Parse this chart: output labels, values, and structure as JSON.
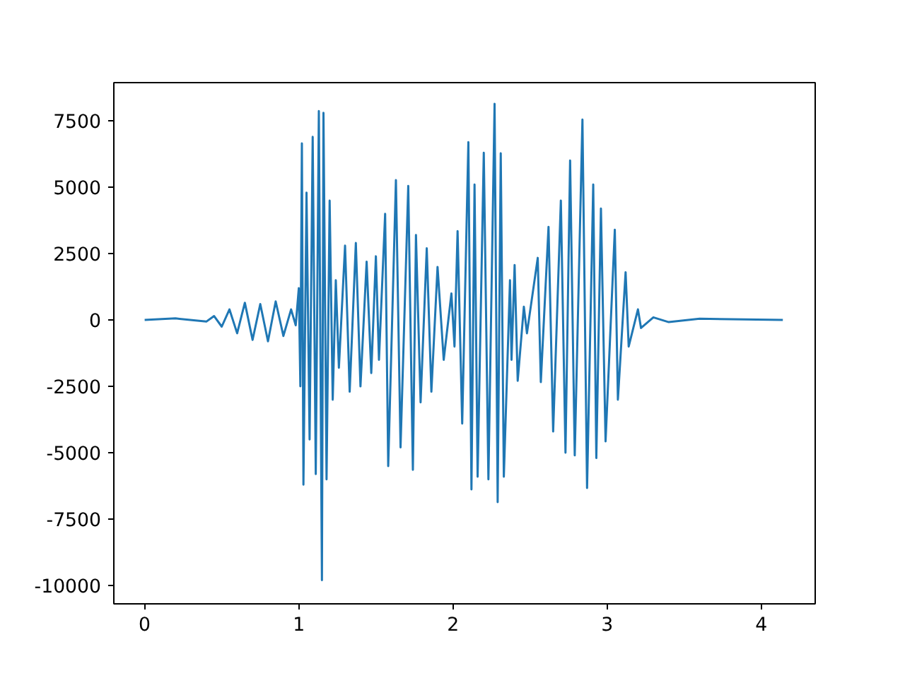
{
  "chart_data": {
    "type": "line",
    "color": "#1f77b4",
    "grid": false,
    "x": [
      0.0,
      0.2,
      0.4,
      0.45,
      0.5,
      0.55,
      0.6,
      0.65,
      0.7,
      0.75,
      0.8,
      0.85,
      0.9,
      0.95,
      0.98,
      1.0,
      1.01,
      1.02,
      1.03,
      1.05,
      1.07,
      1.09,
      1.11,
      1.13,
      1.15,
      1.16,
      1.18,
      1.2,
      1.22,
      1.24,
      1.26,
      1.3,
      1.33,
      1.37,
      1.4,
      1.44,
      1.47,
      1.5,
      1.52,
      1.56,
      1.58,
      1.63,
      1.66,
      1.71,
      1.74,
      1.76,
      1.79,
      1.83,
      1.86,
      1.9,
      1.94,
      1.99,
      2.01,
      2.03,
      2.06,
      2.1,
      2.12,
      2.14,
      2.16,
      2.2,
      2.23,
      2.27,
      2.29,
      2.31,
      2.33,
      2.37,
      2.38,
      2.4,
      2.42,
      2.46,
      2.48,
      2.55,
      2.57,
      2.62,
      2.65,
      2.7,
      2.73,
      2.76,
      2.79,
      2.84,
      2.87,
      2.91,
      2.93,
      2.96,
      2.99,
      3.05,
      3.07,
      3.12,
      3.14,
      3.2,
      3.22,
      3.3,
      3.4,
      3.6,
      4.14
    ],
    "values": [
      0,
      60,
      -60,
      150,
      -250,
      400,
      -500,
      650,
      -750,
      600,
      -800,
      700,
      -600,
      400,
      -200,
      1200,
      -2500,
      6650,
      -6200,
      4800,
      -4500,
      6900,
      -5800,
      7870,
      -9800,
      7800,
      -6000,
      4500,
      -3000,
      1500,
      -1800,
      2800,
      -2700,
      2900,
      -2500,
      2200,
      -2000,
      2400,
      -1500,
      4000,
      -5500,
      5270,
      -4800,
      5050,
      -5640,
      3200,
      -3100,
      2700,
      -2700,
      2000,
      -1500,
      1000,
      -1000,
      3350,
      -3900,
      6700,
      -6380,
      5100,
      -5900,
      6300,
      -6000,
      8140,
      -6860,
      6280,
      -5900,
      1500,
      -1500,
      2070,
      -2290,
      500,
      -500,
      2340,
      -2340,
      3510,
      -4200,
      4500,
      -5000,
      6010,
      -5100,
      7550,
      -6330,
      5100,
      -5200,
      4200,
      -4570,
      3400,
      -3000,
      1800,
      -1000,
      400,
      -300,
      100,
      -80,
      50,
      0
    ],
    "xlim": [
      -0.2,
      4.35
    ],
    "ylim": [
      -10690,
      8940
    ],
    "xticks": [
      0,
      1,
      2,
      3,
      4
    ],
    "yticks": [
      -10000,
      -7500,
      -5000,
      -2500,
      0,
      2500,
      5000,
      7500
    ]
  }
}
